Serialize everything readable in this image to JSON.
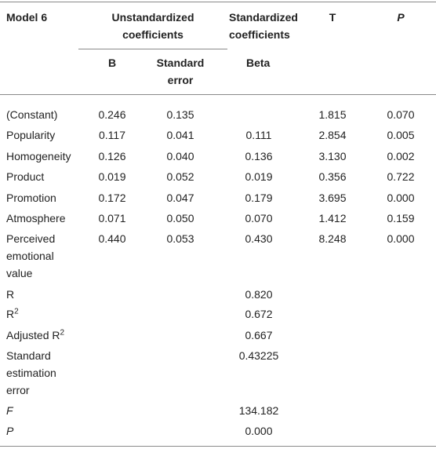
{
  "header": {
    "model": "Model 6",
    "unstandardized": "Unstandardized coefficients",
    "standardized": "Standardized coefficients",
    "t": "T",
    "p": "P",
    "b": "B",
    "standard_error": "Standard error",
    "beta": "Beta"
  },
  "rows": [
    {
      "label": "(Constant)",
      "cells": [
        "0.246",
        "0.135",
        null,
        "1.815",
        "0.070"
      ]
    },
    {
      "label": "Popularity",
      "cells": [
        "0.117",
        "0.041",
        "0.111",
        "2.854",
        "0.005"
      ]
    },
    {
      "label": "Homogeneity",
      "cells": [
        "0.126",
        "0.040",
        "0.136",
        "3.130",
        "0.002"
      ]
    },
    {
      "label": "Product",
      "cells": [
        "0.019",
        "0.052",
        "0.019",
        "0.356",
        "0.722"
      ]
    },
    {
      "label": "Promotion",
      "cells": [
        "0.172",
        "0.047",
        "0.179",
        "3.695",
        "0.000"
      ]
    },
    {
      "label": "Atmosphere",
      "cells": [
        "0.071",
        "0.050",
        "0.070",
        "1.412",
        "0.159"
      ]
    },
    {
      "label": "Perceived emotional value",
      "cells": [
        "0.440",
        "0.053",
        "0.430",
        "8.248",
        "0.000"
      ]
    },
    {
      "label": "R",
      "cells": [
        null,
        null,
        "0.820",
        null,
        null
      ]
    },
    {
      "label": "R",
      "sup": "2",
      "cells": [
        null,
        null,
        "0.672",
        null,
        null
      ]
    },
    {
      "label": "Adjusted R",
      "sup": "2",
      "cells": [
        null,
        null,
        "0.667",
        null,
        null
      ]
    },
    {
      "label": "Standard estimation error",
      "cells": [
        null,
        null,
        "0.43225",
        null,
        null
      ]
    },
    {
      "label": "F",
      "italic": true,
      "cells": [
        null,
        null,
        "134.182",
        null,
        null
      ]
    },
    {
      "label": "P",
      "italic": true,
      "cells": [
        null,
        null,
        "0.000",
        null,
        null
      ]
    }
  ]
}
